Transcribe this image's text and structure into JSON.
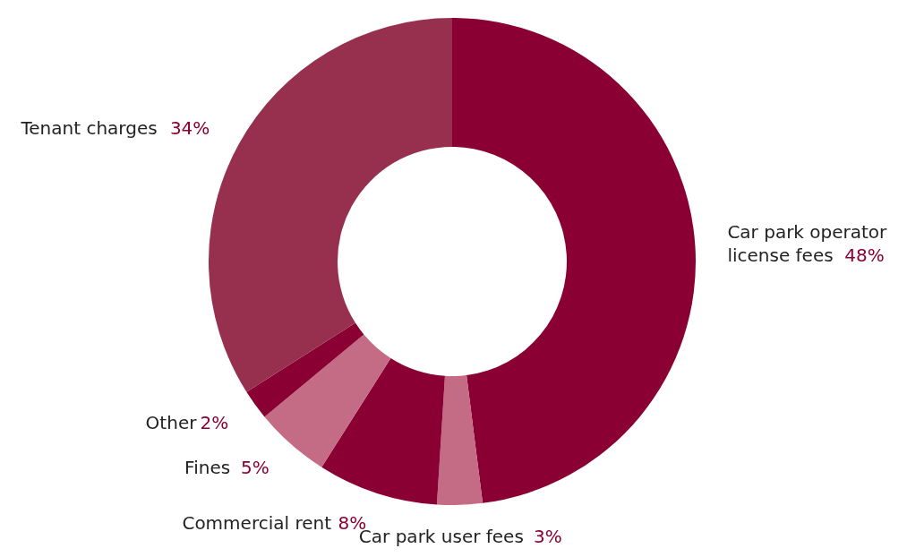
{
  "chart_data": {
    "type": "donut",
    "categories": [
      "Car park operator license fees",
      "Car park user fees",
      "Commercial rent",
      "Fines",
      "Other",
      "Tenant charges"
    ],
    "values": [
      48,
      3,
      8,
      5,
      2,
      34
    ],
    "colors": [
      "#8a0033",
      "#c46b86",
      "#8a0033",
      "#c46b86",
      "#8a0033",
      "#97304f"
    ],
    "value_labels": [
      "48%",
      "3%",
      "8%",
      "5%",
      "2%",
      "34%"
    ]
  }
}
